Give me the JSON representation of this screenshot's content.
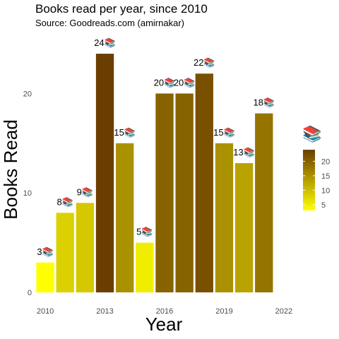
{
  "chart_data": {
    "type": "bar",
    "title": "Books read per year, since 2010",
    "subtitle": "Source: Goodreads.com (amirnakar)",
    "xlabel": "Year",
    "ylabel": "Books Read",
    "x": [
      2010,
      2011,
      2012,
      2013,
      2014,
      2015,
      2016,
      2017,
      2018,
      2019,
      2020,
      2021
    ],
    "values": [
      3,
      8,
      9,
      24,
      15,
      5,
      20,
      20,
      22,
      15,
      13,
      18
    ],
    "bar_labels": [
      "3📚",
      "8📚",
      "9📚",
      "24📚",
      "15📚",
      "5📚",
      "20📚",
      "20📚",
      "22📚",
      "15📚",
      "13📚",
      "18📚"
    ],
    "ylim": [
      0,
      25
    ],
    "yticks": [
      0,
      10,
      20
    ],
    "xlim": [
      2009.5,
      2022.5
    ],
    "xticks": [
      2010,
      2013,
      2016,
      2019,
      2022
    ],
    "grid": false,
    "legend": {
      "title": "📚",
      "placement": "right",
      "ticks": [
        5,
        10,
        15,
        20
      ],
      "range": [
        3,
        24
      ],
      "colors": [
        "#ffff00",
        "#6b3e00"
      ]
    }
  }
}
